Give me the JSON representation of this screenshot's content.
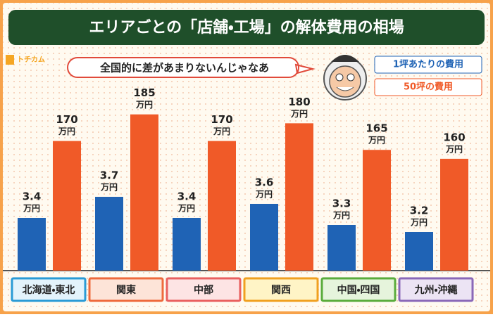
{
  "logo": "トチカム",
  "chart_data": {
    "type": "bar",
    "title": "エリアごとの「店舗・工場」の解体費用の相場",
    "annotation": "全国的に差があまりないんじゃなあ",
    "unit": "万円",
    "categories": [
      "北海道・東北",
      "関東",
      "中部",
      "関西",
      "中国・四国",
      "九州・沖縄"
    ],
    "category_colors": [
      {
        "fill": "#e3f3fb",
        "border": "#2a9bd6"
      },
      {
        "fill": "#fde4d8",
        "border": "#ee6a3c"
      },
      {
        "fill": "#fde4e4",
        "border": "#e9605f"
      },
      {
        "fill": "#fff4c6",
        "border": "#f0a020"
      },
      {
        "fill": "#e6f4dc",
        "border": "#5aac3c"
      },
      {
        "fill": "#ece4f4",
        "border": "#8a68b8"
      }
    ],
    "series": [
      {
        "name": "1坪あたりの費用",
        "color": "#1f63b5",
        "values": [
          3.4,
          3.7,
          3.4,
          3.6,
          3.3,
          3.2
        ]
      },
      {
        "name": "50坪の費用",
        "color": "#f05a28",
        "axis": "y2",
        "values": [
          170,
          185,
          170,
          180,
          165,
          160
        ]
      }
    ],
    "ylim": [
      2.65,
      5.1
    ],
    "y2lim": [
      97,
      194
    ]
  }
}
